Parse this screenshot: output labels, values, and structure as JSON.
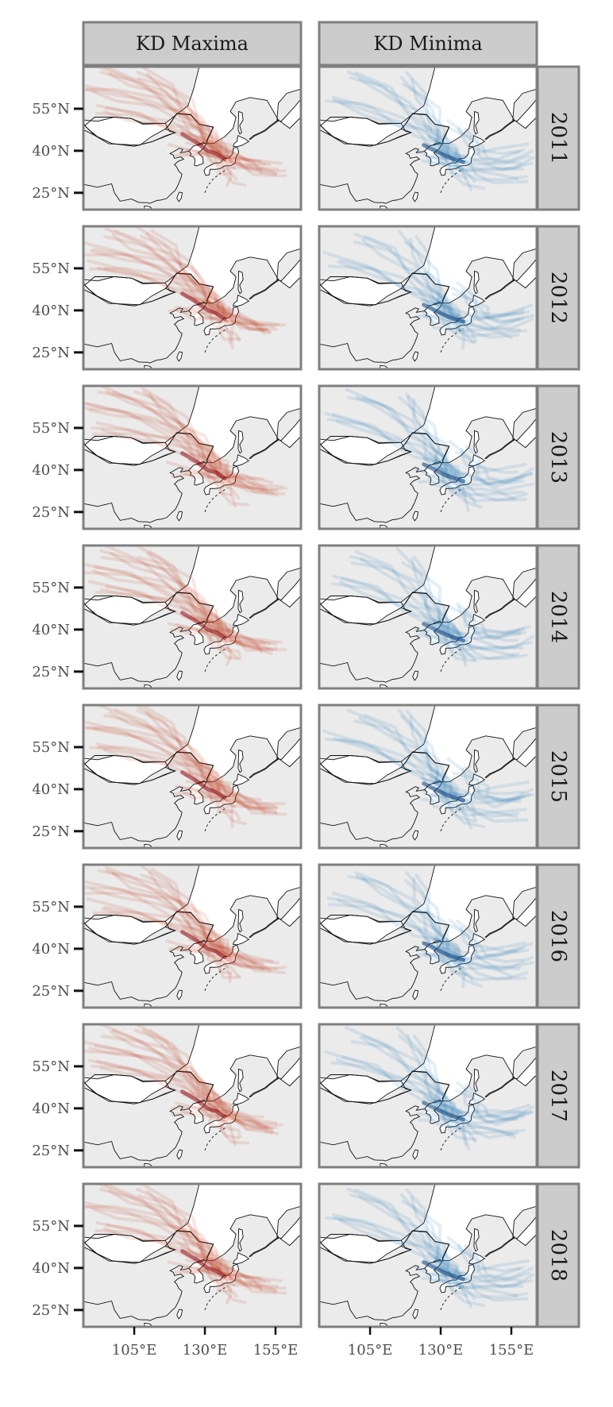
{
  "columns": [
    "KD Maxima",
    "KD Minima"
  ],
  "rows": [
    "2011",
    "2012",
    "2013",
    "2014",
    "2015",
    "2016",
    "2017",
    "2018"
  ],
  "y_ticks": [
    "55°N",
    "40°N",
    "25°N"
  ],
  "x_ticks": [
    "105°E",
    "130°E",
    "155°E"
  ],
  "colors": {
    "maxima": "#c43b1f",
    "maxima_dark": "#8e0b14",
    "minima": "#2a7ab8",
    "minima_dark": "#0d3f7a",
    "panel_bg": "#ebebeb",
    "land": "#ffffff",
    "strip_bg": "#cccccc",
    "frame": "#7f7f7f"
  }
}
